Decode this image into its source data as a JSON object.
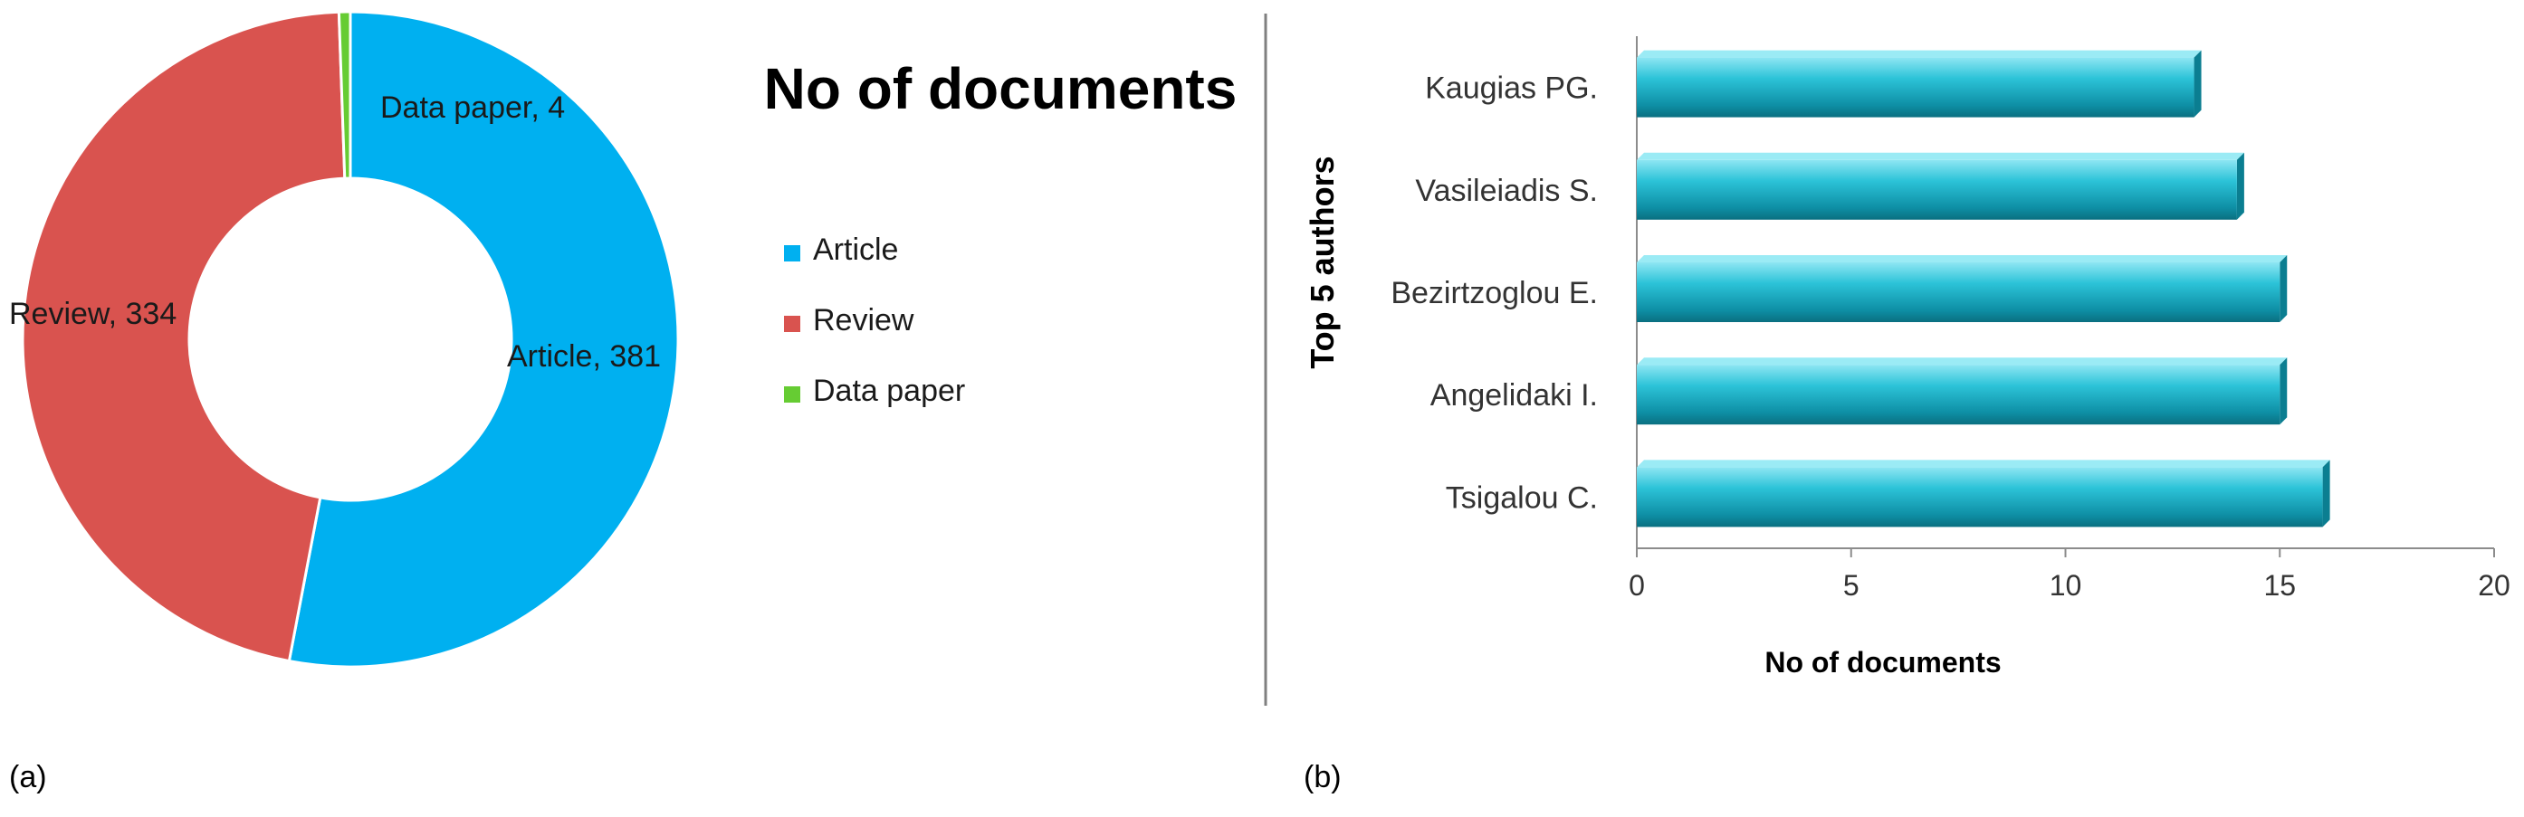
{
  "chart_data": [
    {
      "type": "pie",
      "variant": "donut",
      "title": "No of documents",
      "categories": [
        "Article",
        "Review",
        "Data paper"
      ],
      "values": [
        381,
        334,
        4
      ],
      "data_labels": [
        "Article, 381",
        "Review, 334",
        "Data paper, 4"
      ],
      "legend": {
        "placement": "right",
        "entries": [
          "Article",
          "Review",
          "Data paper"
        ]
      },
      "colors": [
        "#00B0F0",
        "#D9534F",
        "#66CC33"
      ],
      "panel_label": "(a)"
    },
    {
      "type": "bar",
      "orientation": "horizontal",
      "categories": [
        "Tsigalou C.",
        "Angelidaki I.",
        "Bezirtzoglou E.",
        "Vasileiadis S.",
        "Kaugias PG."
      ],
      "values": [
        16,
        15,
        15,
        14,
        13
      ],
      "xlabel": "No of documents",
      "ylabel": "Top 5 authors",
      "xlim": [
        0,
        20
      ],
      "xticks": [
        "0",
        "5",
        "10",
        "15",
        "20"
      ],
      "grid": false,
      "color": "#19B3C9",
      "panel_label": "(b)"
    }
  ]
}
